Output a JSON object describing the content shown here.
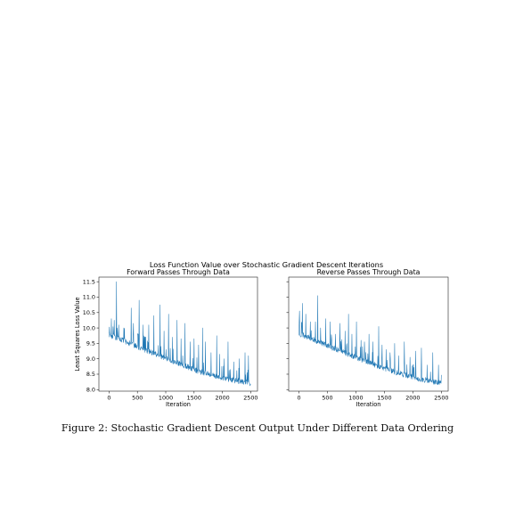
{
  "figure_title": "Loss Function Value over Stochastic Gradient Descent Iterations",
  "caption": "Figure 2: Stochastic Gradient Descent Output Under Different Data Ordering",
  "chart_data": [
    {
      "type": "line",
      "title": "Forward Passes Through Data",
      "xlabel": "Iteration",
      "ylabel": "Least Squares Loss Value",
      "xlim": [
        -180,
        2620
      ],
      "ylim": [
        7.95,
        11.65
      ],
      "xticks": [
        0,
        500,
        1000,
        1500,
        2000,
        2500
      ],
      "yticks": [
        8.0,
        8.5,
        9.0,
        9.5,
        10.0,
        10.5,
        11.0,
        11.5
      ],
      "series": [
        {
          "color": "#1f77b4",
          "baseline_points": [
            [
              0,
              9.7
            ],
            [
              300,
              9.48
            ],
            [
              600,
              9.25
            ],
            [
              900,
              9.02
            ],
            [
              1200,
              8.8
            ],
            [
              1500,
              8.58
            ],
            [
              1800,
              8.4
            ],
            [
              2100,
              8.27
            ],
            [
              2400,
              8.17
            ],
            [
              2500,
              8.13
            ]
          ],
          "spikes": [
            [
              40,
              10.3
            ],
            [
              90,
              10.25
            ],
            [
              130,
              11.5
            ],
            [
              170,
              10.1
            ],
            [
              260,
              10.0
            ],
            [
              390,
              10.65
            ],
            [
              430,
              10.15
            ],
            [
              530,
              10.9
            ],
            [
              600,
              10.1
            ],
            [
              700,
              10.1
            ],
            [
              790,
              10.4
            ],
            [
              900,
              10.75
            ],
            [
              970,
              9.9
            ],
            [
              1050,
              10.45
            ],
            [
              1120,
              9.7
            ],
            [
              1200,
              10.25
            ],
            [
              1270,
              9.65
            ],
            [
              1340,
              10.15
            ],
            [
              1430,
              9.55
            ],
            [
              1500,
              9.65
            ],
            [
              1580,
              9.45
            ],
            [
              1650,
              10.0
            ],
            [
              1700,
              9.55
            ],
            [
              1800,
              9.2
            ],
            [
              1900,
              9.75
            ],
            [
              1950,
              9.15
            ],
            [
              2030,
              9.0
            ],
            [
              2100,
              9.55
            ],
            [
              2200,
              8.9
            ],
            [
              2300,
              9.0
            ],
            [
              2400,
              9.2
            ],
            [
              2460,
              9.1
            ]
          ],
          "noise_amplitude": 0.18
        }
      ]
    },
    {
      "type": "line",
      "title": "Reverse Passes Through Data",
      "xlabel": "Iteration",
      "ylabel": "",
      "xlim": [
        -180,
        2620
      ],
      "ylim": [
        7.95,
        11.65
      ],
      "xticks": [
        0,
        500,
        1000,
        1500,
        2000,
        2500
      ],
      "yticks": [],
      "series": [
        {
          "color": "#1f77b4",
          "baseline_points": [
            [
              0,
              9.75
            ],
            [
              300,
              9.52
            ],
            [
              600,
              9.28
            ],
            [
              900,
              9.05
            ],
            [
              1200,
              8.83
            ],
            [
              1500,
              8.62
            ],
            [
              1800,
              8.43
            ],
            [
              2100,
              8.28
            ],
            [
              2400,
              8.17
            ],
            [
              2500,
              8.13
            ]
          ],
          "spikes": [
            [
              10,
              10.55
            ],
            [
              60,
              10.8
            ],
            [
              120,
              10.45
            ],
            [
              200,
              10.2
            ],
            [
              290,
              10.2
            ],
            [
              330,
              11.05
            ],
            [
              380,
              10.0
            ],
            [
              470,
              10.3
            ],
            [
              550,
              10.2
            ],
            [
              640,
              9.8
            ],
            [
              720,
              10.15
            ],
            [
              810,
              9.9
            ],
            [
              870,
              10.45
            ],
            [
              930,
              9.8
            ],
            [
              1010,
              10.2
            ],
            [
              1090,
              9.6
            ],
            [
              1150,
              9.55
            ],
            [
              1230,
              9.8
            ],
            [
              1300,
              9.55
            ],
            [
              1400,
              10.05
            ],
            [
              1460,
              9.45
            ],
            [
              1530,
              9.3
            ],
            [
              1600,
              9.2
            ],
            [
              1680,
              9.5
            ],
            [
              1750,
              9.1
            ],
            [
              1850,
              9.55
            ],
            [
              1950,
              9.05
            ],
            [
              2050,
              9.25
            ],
            [
              2150,
              9.35
            ],
            [
              2250,
              8.8
            ],
            [
              2350,
              9.2
            ],
            [
              2450,
              8.8
            ]
          ],
          "noise_amplitude": 0.18
        }
      ]
    }
  ]
}
